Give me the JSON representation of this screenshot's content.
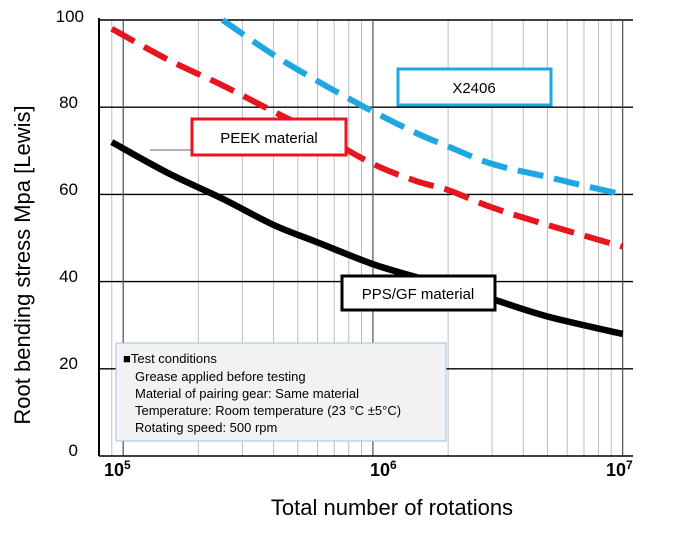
{
  "chart_data": {
    "type": "line",
    "xlabel": "Total number of rotations",
    "ylabel": "Root bending stress Mpa [Lewis]",
    "x_scale": "log",
    "xlim": [
      80000,
      11000000
    ],
    "ylim": [
      0,
      100
    ],
    "y_ticks": [
      "0",
      "20",
      "40",
      "60",
      "80",
      "100"
    ],
    "x_ticks": [
      {
        "base": "10",
        "exp": "5",
        "value": 100000
      },
      {
        "base": "10",
        "exp": "6",
        "value": 1000000
      },
      {
        "base": "10",
        "exp": "7",
        "value": 10000000
      }
    ],
    "grid": true,
    "series": [
      {
        "name": "X2406",
        "color": "#1EA7E1",
        "style": "dashed",
        "x": [
          250000,
          400000,
          600000,
          800000,
          1000000,
          1500000,
          2000000,
          3000000,
          5000000,
          7000000,
          10000000
        ],
        "y": [
          100,
          92,
          86,
          82,
          79,
          74,
          71,
          67,
          64,
          62,
          60
        ]
      },
      {
        "name": "PEEK material",
        "color": "#E8141E",
        "style": "dashed",
        "x": [
          90000,
          150000,
          250000,
          400000,
          600000,
          1000000,
          1500000,
          2000000,
          3000000,
          5000000,
          10000000
        ],
        "y": [
          98,
          91,
          85,
          79,
          74,
          67,
          63,
          61,
          57,
          53,
          48
        ]
      },
      {
        "name": "PPS/GF material",
        "color": "#000000",
        "style": "solid",
        "x": [
          90000,
          150000,
          250000,
          400000,
          600000,
          1000000,
          1500000,
          2000000,
          3000000,
          5000000,
          10000000
        ],
        "y": [
          72,
          65,
          59,
          53,
          49,
          44,
          41,
          39,
          36,
          32,
          28
        ]
      }
    ],
    "annotations": {
      "conditions": [
        "■Test conditions",
        "Grease applied before testing",
        "Material of pairing gear: Same material",
        "Temperature: Room temperature (23 °C ±5°C)",
        "Rotating speed: 500 rpm"
      ]
    }
  }
}
